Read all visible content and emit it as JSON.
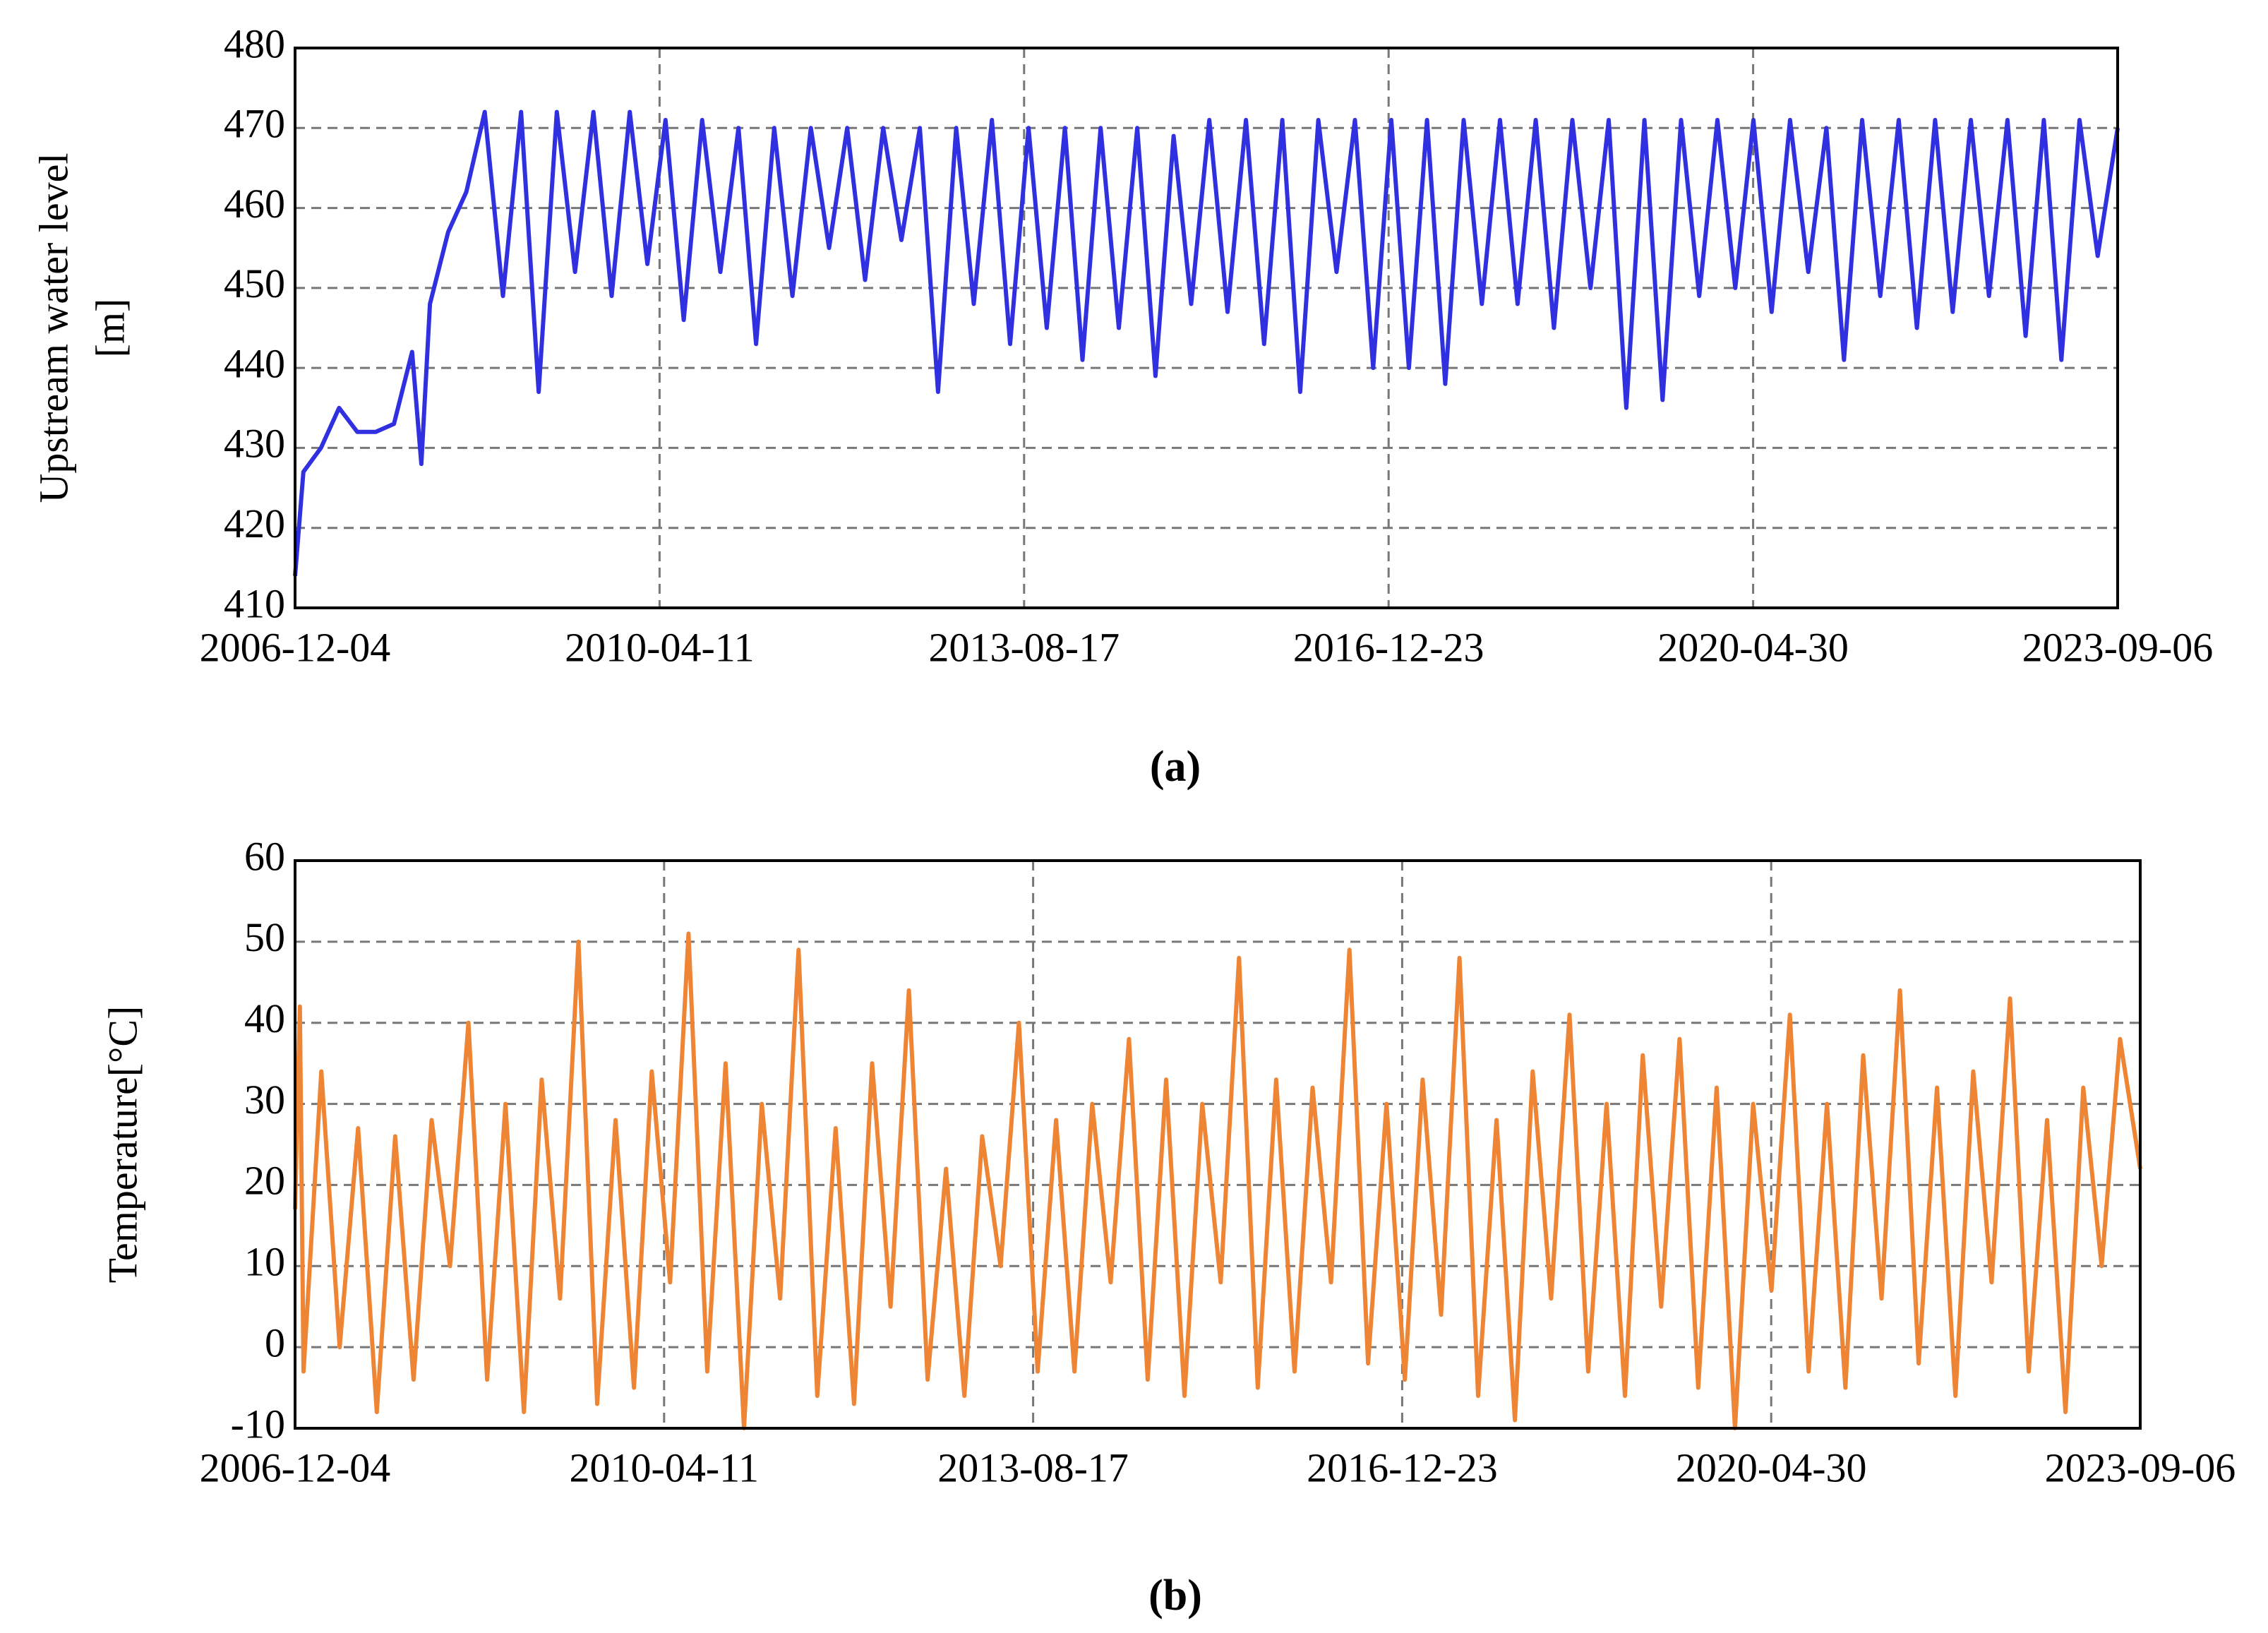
{
  "chart_data": [
    {
      "type": "line",
      "caption": "(a)",
      "ylabel": [
        "Upstream water level",
        "[m]"
      ],
      "x": [
        "2006-12-04",
        "2007-01-01",
        "2007-03-01",
        "2007-05-01",
        "2007-07-01",
        "2007-09-01",
        "2007-11-01",
        "2008-01-01",
        "2008-02-01",
        "2008-03-01",
        "2008-05-01",
        "2008-07-01",
        "2008-09-01",
        "2008-11-01",
        "2009-01-01",
        "2009-03-01",
        "2009-05-01",
        "2009-07-01",
        "2009-09-01",
        "2009-11-01",
        "2010-01-01",
        "2010-03-01",
        "2010-05-01",
        "2010-07-01",
        "2010-09-01",
        "2010-11-01",
        "2011-01-01",
        "2011-03-01",
        "2011-05-01",
        "2011-07-01",
        "2011-09-01",
        "2011-11-01",
        "2012-01-01",
        "2012-03-01",
        "2012-05-01",
        "2012-07-01",
        "2012-09-01",
        "2012-11-01",
        "2013-01-01",
        "2013-03-01",
        "2013-05-01",
        "2013-07-01",
        "2013-09-01",
        "2013-11-01",
        "2014-01-01",
        "2014-03-01",
        "2014-05-01",
        "2014-07-01",
        "2014-09-01",
        "2014-11-01",
        "2015-01-01",
        "2015-03-01",
        "2015-05-01",
        "2015-07-01",
        "2015-09-01",
        "2015-11-01",
        "2016-01-01",
        "2016-03-01",
        "2016-05-01",
        "2016-07-01",
        "2016-09-01",
        "2016-11-01",
        "2017-01-01",
        "2017-03-01",
        "2017-05-01",
        "2017-07-01",
        "2017-09-01",
        "2017-11-01",
        "2018-01-01",
        "2018-03-01",
        "2018-05-01",
        "2018-07-01",
        "2018-09-01",
        "2018-11-01",
        "2019-01-01",
        "2019-03-01",
        "2019-05-01",
        "2019-07-01",
        "2019-09-01",
        "2019-11-01",
        "2020-01-01",
        "2020-03-01",
        "2020-05-01",
        "2020-07-01",
        "2020-09-01",
        "2020-11-01",
        "2021-01-01",
        "2021-03-01",
        "2021-05-01",
        "2021-07-01",
        "2021-09-01",
        "2021-11-01",
        "2022-01-01",
        "2022-03-01",
        "2022-05-01",
        "2022-07-01",
        "2022-09-01",
        "2022-11-01",
        "2023-01-01",
        "2023-03-01",
        "2023-05-01",
        "2023-07-01",
        "2023-09-06"
      ],
      "series": [
        {
          "color": "#3030e0",
          "values": [
            414,
            427,
            430,
            435,
            432,
            432,
            433,
            442,
            428,
            448,
            457,
            462,
            472,
            449,
            472,
            437,
            472,
            452,
            472,
            449,
            472,
            453,
            471,
            446,
            471,
            452,
            470,
            443,
            470,
            449,
            470,
            455,
            470,
            451,
            470,
            456,
            470,
            437,
            470,
            448,
            471,
            443,
            470,
            445,
            470,
            441,
            470,
            445,
            470,
            439,
            469,
            448,
            471,
            447,
            471,
            443,
            471,
            437,
            471,
            452,
            471,
            440,
            471,
            440,
            471,
            438,
            471,
            448,
            471,
            448,
            471,
            445,
            471,
            450,
            471,
            435,
            471,
            436,
            471,
            449,
            471,
            450,
            471,
            447,
            471,
            452,
            470,
            441,
            471,
            449,
            471,
            445,
            471,
            447,
            471,
            449,
            471,
            444,
            471,
            441,
            471,
            454,
            470
          ]
        }
      ],
      "xlim": [
        "2006-12-04",
        "2023-09-06"
      ],
      "xticks": [
        "2006-12-04",
        "2010-04-11",
        "2013-08-17",
        "2016-12-23",
        "2020-04-30",
        "2023-09-06"
      ],
      "ylim": [
        410,
        480
      ],
      "yticks": [
        410,
        420,
        430,
        440,
        450,
        460,
        470,
        480
      ],
      "grid": true
    },
    {
      "type": "line",
      "caption": "(b)",
      "ylabel": [
        "Temperature[°C]"
      ],
      "x": [
        "2006-12-04",
        "2006-12-20",
        "2007-01-01",
        "2007-03-01",
        "2007-05-01",
        "2007-07-01",
        "2007-09-01",
        "2007-11-01",
        "2008-01-01",
        "2008-03-01",
        "2008-05-01",
        "2008-07-01",
        "2008-09-01",
        "2008-11-01",
        "2009-01-01",
        "2009-03-01",
        "2009-05-01",
        "2009-07-01",
        "2009-09-01",
        "2009-11-01",
        "2010-01-01",
        "2010-03-01",
        "2010-05-01",
        "2010-07-01",
        "2010-09-01",
        "2010-11-01",
        "2011-01-01",
        "2011-03-01",
        "2011-05-01",
        "2011-07-01",
        "2011-09-01",
        "2011-11-01",
        "2012-01-01",
        "2012-03-01",
        "2012-05-01",
        "2012-07-01",
        "2012-09-01",
        "2012-11-01",
        "2013-01-01",
        "2013-03-01",
        "2013-05-01",
        "2013-07-01",
        "2013-09-01",
        "2013-11-01",
        "2014-01-01",
        "2014-03-01",
        "2014-05-01",
        "2014-07-01",
        "2014-09-01",
        "2014-11-01",
        "2015-01-01",
        "2015-03-01",
        "2015-05-01",
        "2015-07-01",
        "2015-09-01",
        "2015-11-01",
        "2016-01-01",
        "2016-03-01",
        "2016-05-01",
        "2016-07-01",
        "2016-09-01",
        "2016-11-01",
        "2017-01-01",
        "2017-03-01",
        "2017-05-01",
        "2017-07-01",
        "2017-09-01",
        "2017-11-01",
        "2018-01-01",
        "2018-03-01",
        "2018-05-01",
        "2018-07-01",
        "2018-09-01",
        "2018-11-01",
        "2019-01-01",
        "2019-03-01",
        "2019-05-01",
        "2019-07-01",
        "2019-09-01",
        "2019-11-01",
        "2020-01-01",
        "2020-03-01",
        "2020-05-01",
        "2020-07-01",
        "2020-09-01",
        "2020-11-01",
        "2021-01-01",
        "2021-03-01",
        "2021-05-01",
        "2021-07-01",
        "2021-09-01",
        "2021-11-01",
        "2022-01-01",
        "2022-03-01",
        "2022-05-01",
        "2022-07-01",
        "2022-09-01",
        "2022-11-01",
        "2023-01-01",
        "2023-03-01",
        "2023-05-01",
        "2023-07-01",
        "2023-09-06"
      ],
      "series": [
        {
          "color": "#ee8535",
          "values": [
            17,
            42,
            -3,
            34,
            0,
            27,
            -8,
            26,
            -4,
            28,
            10,
            40,
            -4,
            30,
            -8,
            33,
            6,
            50,
            -7,
            28,
            -5,
            34,
            8,
            51,
            -3,
            35,
            -10,
            30,
            6,
            49,
            -6,
            27,
            -7,
            35,
            5,
            44,
            -4,
            22,
            -6,
            26,
            10,
            40,
            -3,
            28,
            -3,
            30,
            8,
            38,
            -4,
            33,
            -6,
            30,
            8,
            48,
            -5,
            33,
            -3,
            32,
            8,
            49,
            -2,
            30,
            -4,
            33,
            4,
            48,
            -6,
            28,
            -9,
            34,
            6,
            41,
            -3,
            30,
            -6,
            36,
            5,
            38,
            -5,
            32,
            -10,
            30,
            7,
            41,
            -3,
            30,
            -5,
            36,
            6,
            44,
            -2,
            32,
            -6,
            34,
            8,
            43,
            -3,
            28,
            -8,
            32,
            10,
            38,
            22
          ]
        }
      ],
      "xlim": [
        "2006-12-04",
        "2023-09-06"
      ],
      "xticks": [
        "2006-12-04",
        "2010-04-11",
        "2013-08-17",
        "2016-12-23",
        "2020-04-30",
        "2023-09-06"
      ],
      "ylim": [
        -10,
        60
      ],
      "yticks": [
        -10,
        0,
        10,
        20,
        30,
        40,
        50,
        60
      ],
      "grid": true
    }
  ]
}
